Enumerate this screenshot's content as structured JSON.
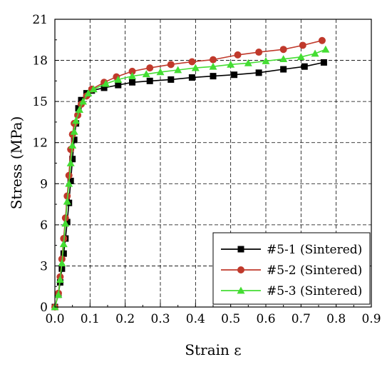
{
  "chart_data": {
    "type": "line",
    "title": "",
    "xlabel": "Strain ε",
    "ylabel": "Stress (MPa)",
    "xlim": [
      0.0,
      0.9
    ],
    "ylim": [
      0,
      21
    ],
    "xticks": [
      "0.0",
      "0.1",
      "0.2",
      "0.3",
      "0.4",
      "0.5",
      "0.6",
      "0.7",
      "0.8",
      "0.9"
    ],
    "yticks": [
      "0",
      "3",
      "6",
      "9",
      "12",
      "15",
      "18",
      "21"
    ],
    "grid": true,
    "legend_position": "bottom-right",
    "series": [
      {
        "name": "#5-1 (Sintered)",
        "color": "#000000",
        "marker": "square",
        "points": [
          [
            0.0,
            0.0
          ],
          [
            0.01,
            0.9
          ],
          [
            0.015,
            1.8
          ],
          [
            0.02,
            2.8
          ],
          [
            0.025,
            3.9
          ],
          [
            0.03,
            5.0
          ],
          [
            0.035,
            6.2
          ],
          [
            0.04,
            7.6
          ],
          [
            0.045,
            9.2
          ],
          [
            0.05,
            10.8
          ],
          [
            0.055,
            12.2
          ],
          [
            0.06,
            13.4
          ],
          [
            0.067,
            14.5
          ],
          [
            0.075,
            15.1
          ],
          [
            0.09,
            15.6
          ],
          [
            0.105,
            15.8
          ],
          [
            0.14,
            16.0
          ],
          [
            0.18,
            16.2
          ],
          [
            0.22,
            16.4
          ],
          [
            0.27,
            16.5
          ],
          [
            0.33,
            16.6
          ],
          [
            0.39,
            16.75
          ],
          [
            0.45,
            16.85
          ],
          [
            0.51,
            16.95
          ],
          [
            0.58,
            17.1
          ],
          [
            0.65,
            17.35
          ],
          [
            0.71,
            17.55
          ],
          [
            0.765,
            17.85
          ]
        ]
      },
      {
        "name": "#5-2 (Sintered)",
        "color": "#c0392b",
        "marker": "circle",
        "points": [
          [
            0.0,
            0.0
          ],
          [
            0.01,
            1.0
          ],
          [
            0.015,
            2.2
          ],
          [
            0.02,
            3.5
          ],
          [
            0.025,
            5.0
          ],
          [
            0.03,
            6.5
          ],
          [
            0.035,
            8.1
          ],
          [
            0.04,
            9.6
          ],
          [
            0.045,
            11.5
          ],
          [
            0.05,
            12.6
          ],
          [
            0.055,
            13.4
          ],
          [
            0.065,
            14.0
          ],
          [
            0.075,
            14.8
          ],
          [
            0.09,
            15.4
          ],
          [
            0.105,
            15.9
          ],
          [
            0.14,
            16.4
          ],
          [
            0.175,
            16.8
          ],
          [
            0.22,
            17.2
          ],
          [
            0.27,
            17.45
          ],
          [
            0.33,
            17.7
          ],
          [
            0.39,
            17.9
          ],
          [
            0.45,
            18.05
          ],
          [
            0.52,
            18.4
          ],
          [
            0.58,
            18.6
          ],
          [
            0.65,
            18.8
          ],
          [
            0.705,
            19.1
          ],
          [
            0.76,
            19.45
          ]
        ]
      },
      {
        "name": "#5-3 (Sintered)",
        "color": "#44dd33",
        "marker": "triangle",
        "points": [
          [
            0.0,
            0.0
          ],
          [
            0.01,
            0.9
          ],
          [
            0.015,
            2.0
          ],
          [
            0.02,
            3.2
          ],
          [
            0.025,
            4.6
          ],
          [
            0.03,
            6.1
          ],
          [
            0.035,
            7.7
          ],
          [
            0.04,
            9.0
          ],
          [
            0.045,
            10.5
          ],
          [
            0.05,
            11.8
          ],
          [
            0.055,
            12.8
          ],
          [
            0.06,
            13.6
          ],
          [
            0.07,
            14.4
          ],
          [
            0.08,
            15.0
          ],
          [
            0.095,
            15.6
          ],
          [
            0.11,
            15.9
          ],
          [
            0.145,
            16.3
          ],
          [
            0.18,
            16.6
          ],
          [
            0.22,
            16.85
          ],
          [
            0.26,
            17.0
          ],
          [
            0.3,
            17.15
          ],
          [
            0.35,
            17.3
          ],
          [
            0.4,
            17.45
          ],
          [
            0.45,
            17.55
          ],
          [
            0.5,
            17.7
          ],
          [
            0.55,
            17.8
          ],
          [
            0.6,
            17.95
          ],
          [
            0.65,
            18.1
          ],
          [
            0.7,
            18.25
          ],
          [
            0.74,
            18.5
          ],
          [
            0.77,
            18.8
          ]
        ]
      }
    ]
  }
}
